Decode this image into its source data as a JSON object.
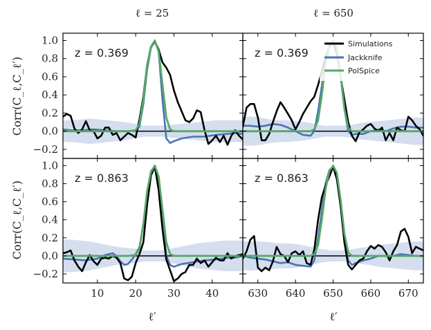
{
  "chart_data": {
    "type": "line",
    "ylabel": "Corr(C_ℓ,C_ℓ′)",
    "xlabel": "ℓ′",
    "ylim": [
      -0.3,
      1.08
    ],
    "yticks": [
      -0.2,
      0.0,
      0.2,
      0.4,
      0.6,
      0.8,
      1.0
    ],
    "ytick_labels": [
      "−0.2",
      "0.0",
      "0.2",
      "0.4",
      "0.6",
      "0.8",
      "1.0"
    ],
    "columns": [
      {
        "title": "ℓ = 25",
        "xlim": [
          1,
          48
        ],
        "xticks": [
          10,
          20,
          30,
          40
        ],
        "xtick_labels": [
          "10",
          "20",
          "30",
          "40"
        ]
      },
      {
        "title": "ℓ = 650",
        "xlim": [
          626,
          674
        ],
        "xticks": [
          630,
          640,
          650,
          660,
          670
        ],
        "xtick_labels": [
          "630",
          "640",
          "650",
          "660",
          "670"
        ]
      }
    ],
    "legend": {
      "position": "top-right",
      "entries": [
        {
          "name": "Simulations",
          "color": "#000000"
        },
        {
          "name": "Jackknife",
          "color": "#4c72b0"
        },
        {
          "name": "PolSpice",
          "color": "#55a868"
        }
      ]
    },
    "panels": [
      {
        "row": 0,
        "col": 0,
        "label": "z = 0.369",
        "simulations": {
          "x": [
            1,
            2,
            3,
            4,
            5,
            6,
            7,
            8,
            9,
            10,
            11,
            12,
            13,
            14,
            15,
            16,
            17,
            18,
            19,
            20,
            21,
            22,
            23,
            24,
            25,
            26,
            27,
            28,
            29,
            30,
            31,
            32,
            33,
            34,
            35,
            36,
            37,
            38,
            39,
            40,
            41,
            42,
            43,
            44,
            45,
            46,
            47,
            48
          ],
          "y": [
            0.16,
            0.19,
            0.17,
            0.03,
            -0.02,
            0.02,
            0.11,
            0.01,
            0.0,
            -0.08,
            -0.05,
            0.04,
            0.04,
            -0.04,
            -0.02,
            -0.1,
            -0.06,
            -0.02,
            -0.04,
            -0.07,
            0.13,
            0.38,
            0.73,
            0.93,
            0.99,
            0.9,
            0.76,
            0.7,
            0.62,
            0.45,
            0.32,
            0.22,
            0.12,
            0.1,
            0.14,
            0.23,
            0.21,
            0.01,
            -0.14,
            -0.1,
            -0.05,
            -0.12,
            -0.05,
            -0.15,
            -0.05,
            0.01,
            -0.05,
            -0.09
          ]
        },
        "jackknife": {
          "x": [
            1,
            3,
            6,
            9,
            12,
            15,
            18,
            20,
            21,
            22,
            23,
            24,
            25,
            26,
            27,
            28,
            29,
            30,
            32,
            35,
            38,
            41,
            44,
            46,
            48
          ],
          "y": [
            0.02,
            0.01,
            0.01,
            0.02,
            0.01,
            0.0,
            0.0,
            0.01,
            0.05,
            0.3,
            0.68,
            0.92,
            0.99,
            0.88,
            0.35,
            -0.08,
            -0.13,
            -0.11,
            -0.08,
            -0.06,
            -0.06,
            -0.04,
            -0.03,
            -0.02,
            -0.03
          ]
        },
        "polspice": {
          "x": [
            1,
            5,
            10,
            15,
            18,
            20,
            21,
            22,
            23,
            24,
            25,
            26,
            27,
            28,
            29,
            30,
            32,
            36,
            40,
            44,
            48
          ],
          "y": [
            0.0,
            0.0,
            0.0,
            0.0,
            0.0,
            0.01,
            0.08,
            0.35,
            0.72,
            0.93,
            1.0,
            0.88,
            0.52,
            0.15,
            0.02,
            0.0,
            0.0,
            0.0,
            0.0,
            0.0,
            0.0
          ]
        },
        "band_half_width": [
          0.12,
          0.12,
          0.13,
          0.14,
          0.13,
          0.12,
          0.11,
          0.1,
          0.08,
          0.06,
          0.06,
          0.06,
          0.07,
          0.08,
          0.09,
          0.1,
          0.11,
          0.12,
          0.12,
          0.12,
          0.12
        ]
      },
      {
        "row": 0,
        "col": 1,
        "label": "z = 0.369",
        "simulations": {
          "x": [
            626,
            627,
            628,
            629,
            630,
            631,
            632,
            633,
            634,
            635,
            636,
            637,
            638,
            639,
            640,
            641,
            642,
            643,
            644,
            645,
            646,
            647,
            648,
            649,
            650,
            651,
            652,
            653,
            654,
            655,
            656,
            657,
            658,
            659,
            660,
            661,
            662,
            663,
            664,
            665,
            666,
            667,
            668,
            669,
            670,
            671,
            672,
            673,
            674
          ],
          "y": [
            0.05,
            0.26,
            0.3,
            0.3,
            0.15,
            -0.1,
            -0.1,
            -0.03,
            0.1,
            0.22,
            0.32,
            0.26,
            0.19,
            0.12,
            0.02,
            0.1,
            0.19,
            0.26,
            0.33,
            0.38,
            0.51,
            0.66,
            0.81,
            0.93,
            0.98,
            0.86,
            0.6,
            0.35,
            0.1,
            -0.05,
            -0.11,
            -0.01,
            0.02,
            0.06,
            0.08,
            0.03,
            0.0,
            0.04,
            -0.1,
            -0.02,
            -0.1,
            0.04,
            0.01,
            0.0,
            0.16,
            0.12,
            0.06,
            0.02,
            -0.05
          ]
        },
        "jackknife": {
          "x": [
            626,
            628,
            630,
            632,
            634,
            636,
            638,
            640,
            642,
            644,
            645,
            646,
            647,
            648,
            649,
            650,
            651,
            652,
            653,
            654,
            655,
            656,
            658,
            660,
            662,
            664,
            666,
            668,
            670,
            672,
            674
          ],
          "y": [
            0.06,
            0.06,
            0.05,
            0.06,
            0.08,
            0.07,
            0.04,
            0.0,
            -0.04,
            -0.05,
            0.0,
            0.22,
            0.5,
            0.8,
            0.95,
            0.99,
            0.9,
            0.6,
            0.25,
            0.0,
            -0.04,
            -0.03,
            -0.03,
            0.0,
            0.02,
            0.0,
            0.03,
            0.05,
            0.05,
            0.04,
            0.04
          ]
        },
        "polspice": {
          "x": [
            626,
            630,
            635,
            640,
            644,
            645,
            646,
            647,
            648,
            649,
            650,
            651,
            652,
            653,
            654,
            655,
            656,
            660,
            665,
            670,
            674
          ],
          "y": [
            0.0,
            0.0,
            0.0,
            0.0,
            0.0,
            0.02,
            0.12,
            0.4,
            0.74,
            0.94,
            1.0,
            0.92,
            0.62,
            0.25,
            0.04,
            0.0,
            0.0,
            0.0,
            0.0,
            0.0,
            0.0
          ]
        },
        "band_half_width": [
          0.16,
          0.16,
          0.15,
          0.13,
          0.12,
          0.12,
          0.11,
          0.1,
          0.08,
          0.06,
          0.06,
          0.06,
          0.07,
          0.09,
          0.1,
          0.11,
          0.12,
          0.13,
          0.14,
          0.15,
          0.15
        ]
      },
      {
        "row": 1,
        "col": 0,
        "label": "z = 0.863",
        "simulations": {
          "x": [
            1,
            2,
            3,
            4,
            5,
            6,
            7,
            8,
            9,
            10,
            11,
            12,
            13,
            14,
            15,
            16,
            17,
            18,
            19,
            20,
            21,
            22,
            23,
            24,
            25,
            26,
            27,
            28,
            29,
            30,
            31,
            32,
            33,
            34,
            35,
            36,
            37,
            38,
            39,
            40,
            41,
            42,
            43,
            44,
            45,
            46,
            47,
            48
          ],
          "y": [
            0.03,
            0.04,
            0.06,
            -0.05,
            -0.12,
            -0.17,
            -0.07,
            0.01,
            -0.06,
            -0.1,
            -0.03,
            -0.02,
            -0.03,
            0.0,
            -0.02,
            -0.08,
            -0.25,
            -0.27,
            -0.23,
            -0.08,
            0.02,
            0.15,
            0.57,
            0.89,
            0.99,
            0.73,
            0.3,
            -0.04,
            -0.16,
            -0.28,
            -0.25,
            -0.2,
            -0.18,
            -0.1,
            -0.1,
            -0.03,
            -0.08,
            -0.05,
            -0.12,
            -0.07,
            -0.02,
            -0.05,
            -0.05,
            0.03,
            -0.03,
            0.0,
            0.01,
            0.02
          ]
        },
        "jackknife": {
          "x": [
            1,
            4,
            7,
            10,
            12,
            14,
            15,
            16,
            17,
            18,
            19,
            20,
            21,
            22,
            23,
            24,
            25,
            26,
            27,
            28,
            29,
            30,
            32,
            35,
            38,
            41,
            44,
            46,
            48
          ],
          "y": [
            -0.03,
            -0.04,
            -0.05,
            -0.03,
            0.01,
            0.03,
            0.0,
            -0.06,
            -0.1,
            -0.09,
            -0.04,
            0.02,
            0.1,
            0.35,
            0.7,
            0.94,
            0.99,
            0.85,
            0.45,
            0.0,
            -0.1,
            -0.12,
            -0.09,
            -0.07,
            -0.05,
            -0.04,
            -0.02,
            -0.02,
            0.0
          ]
        },
        "polspice": {
          "x": [
            1,
            5,
            10,
            15,
            18,
            20,
            21,
            22,
            23,
            24,
            25,
            26,
            27,
            28,
            29,
            30,
            32,
            36,
            40,
            44,
            48
          ],
          "y": [
            0.0,
            0.0,
            0.0,
            0.0,
            0.0,
            0.01,
            0.08,
            0.35,
            0.72,
            0.93,
            1.0,
            0.88,
            0.52,
            0.15,
            0.02,
            0.0,
            0.0,
            0.0,
            0.0,
            0.0,
            0.0
          ]
        },
        "band_half_width": [
          0.18,
          0.18,
          0.17,
          0.16,
          0.14,
          0.12,
          0.1,
          0.09,
          0.08,
          0.06,
          0.06,
          0.06,
          0.08,
          0.1,
          0.12,
          0.14,
          0.15,
          0.16,
          0.17,
          0.17,
          0.17
        ]
      },
      {
        "row": 1,
        "col": 1,
        "label": "z = 0.863",
        "simulations": {
          "x": [
            626,
            627,
            628,
            629,
            630,
            631,
            632,
            633,
            634,
            635,
            636,
            637,
            638,
            639,
            640,
            641,
            642,
            643,
            644,
            645,
            646,
            647,
            648,
            649,
            650,
            651,
            652,
            653,
            654,
            655,
            656,
            657,
            658,
            659,
            660,
            661,
            662,
            663,
            664,
            665,
            666,
            667,
            668,
            669,
            670,
            671,
            672,
            673,
            674
          ],
          "y": [
            -0.03,
            0.05,
            0.18,
            0.22,
            -0.13,
            -0.17,
            -0.13,
            -0.16,
            -0.06,
            0.1,
            0.02,
            0.0,
            -0.07,
            0.03,
            0.05,
            0.01,
            0.05,
            -0.08,
            -0.1,
            0.07,
            0.4,
            0.65,
            0.78,
            0.88,
            0.99,
            0.85,
            0.55,
            0.15,
            -0.1,
            -0.15,
            -0.1,
            -0.05,
            -0.03,
            0.05,
            0.11,
            0.08,
            0.12,
            0.1,
            0.04,
            -0.05,
            0.05,
            0.12,
            0.27,
            0.3,
            0.21,
            0.03,
            0.1,
            0.08,
            0.06
          ]
        },
        "jackknife": {
          "x": [
            626,
            628,
            630,
            632,
            634,
            636,
            638,
            640,
            642,
            644,
            645,
            646,
            647,
            648,
            649,
            650,
            651,
            652,
            653,
            654,
            655,
            656,
            658,
            660,
            662,
            664,
            666,
            668,
            670,
            672,
            674
          ],
          "y": [
            0.0,
            -0.02,
            -0.03,
            -0.04,
            -0.06,
            -0.08,
            -0.07,
            -0.1,
            -0.11,
            -0.12,
            -0.05,
            0.2,
            0.5,
            0.8,
            0.95,
            0.99,
            0.88,
            0.55,
            0.2,
            -0.05,
            -0.1,
            -0.08,
            -0.05,
            -0.03,
            0.0,
            0.0,
            0.0,
            0.02,
            0.01,
            0.0,
            0.0
          ]
        },
        "polspice": {
          "x": [
            626,
            630,
            635,
            640,
            644,
            645,
            646,
            647,
            648,
            649,
            650,
            651,
            652,
            653,
            654,
            655,
            656,
            660,
            665,
            670,
            674
          ],
          "y": [
            0.0,
            0.0,
            0.0,
            0.0,
            0.0,
            0.02,
            0.12,
            0.4,
            0.74,
            0.94,
            1.0,
            0.92,
            0.62,
            0.25,
            0.04,
            0.0,
            0.0,
            0.0,
            0.0,
            0.0,
            0.0
          ]
        },
        "band_half_width": [
          0.16,
          0.16,
          0.16,
          0.15,
          0.14,
          0.14,
          0.13,
          0.11,
          0.09,
          0.07,
          0.06,
          0.06,
          0.07,
          0.09,
          0.1,
          0.12,
          0.13,
          0.14,
          0.15,
          0.16,
          0.16
        ]
      }
    ]
  }
}
